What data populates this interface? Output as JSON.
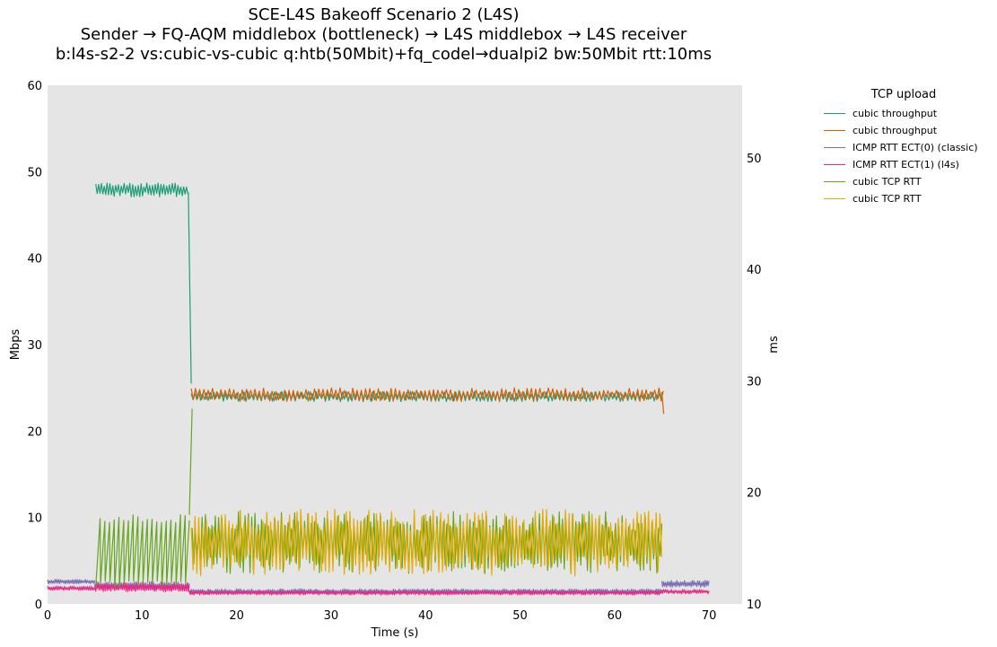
{
  "chart_data": {
    "type": "line",
    "title": [
      "SCE-L4S Bakeoff Scenario 2 (L4S)",
      "Sender → FQ-AQM middlebox (bottleneck) → L4S middlebox → L4S receiver",
      "b:l4s-s2-2 vs:cubic-vs-cubic q:htb(50Mbit)+fq_codel→dualpi2 bw:50Mbit rtt:10ms"
    ],
    "xlabel": "Time (s)",
    "ylabel_left": "Mbps",
    "ylabel_right": "ms",
    "xlim": [
      0,
      73.5
    ],
    "ylim_left": [
      0,
      60
    ],
    "ylim_right": [
      10,
      56.5
    ],
    "xticks": [
      0,
      10,
      20,
      30,
      40,
      50,
      60,
      70
    ],
    "yticks_left": [
      0,
      10,
      20,
      30,
      40,
      50,
      60
    ],
    "yticks_right": [
      10,
      20,
      30,
      40,
      50
    ],
    "grid": false,
    "legend_title": "TCP upload",
    "legend_position": "outside-right",
    "series": [
      {
        "name": "cubic throughput",
        "axis": "left",
        "color": "#1b9e77",
        "segments": [
          {
            "start": 5.1,
            "end": 14.9,
            "base": 47.9,
            "amp": 0.8,
            "period": 0.3
          },
          {
            "start": 14.9,
            "end": 15.2,
            "linear": [
              47.6,
              25.5
            ]
          },
          {
            "start": 15.2,
            "end": 65.0,
            "base": 24.0,
            "amp": 0.6,
            "period": 0.4
          }
        ]
      },
      {
        "name": "cubic throughput",
        "axis": "left",
        "color": "#d95f02",
        "segments": [
          {
            "start": 15.2,
            "end": 65.2,
            "base": 24.2,
            "amp": 0.8,
            "period": 0.45
          },
          {
            "start": 65.0,
            "end": 65.2,
            "linear": [
              24.5,
              22.0
            ]
          }
        ]
      },
      {
        "name": "ICMP RTT ECT(0) (classic)",
        "axis": "right",
        "color": "#7570b3",
        "segments": [
          {
            "start": 0.0,
            "end": 5.0,
            "base": 12.0,
            "amp": 0.2,
            "period": 0.2
          },
          {
            "start": 5.0,
            "end": 15.0,
            "base": 11.6,
            "amp": 0.4,
            "period": 0.2
          },
          {
            "start": 15.0,
            "end": 65.0,
            "base": 11.1,
            "amp": 0.25,
            "period": 0.2
          },
          {
            "start": 65.0,
            "end": 70.0,
            "base": 11.8,
            "amp": 0.3,
            "period": 0.2
          }
        ]
      },
      {
        "name": "ICMP RTT ECT(1) (l4s)",
        "axis": "right",
        "color": "#e7298a",
        "segments": [
          {
            "start": 0.0,
            "end": 5.0,
            "base": 11.4,
            "amp": 0.2,
            "period": 0.2
          },
          {
            "start": 5.0,
            "end": 15.0,
            "base": 11.5,
            "amp": 0.4,
            "period": 0.2
          },
          {
            "start": 15.0,
            "end": 65.0,
            "base": 11.0,
            "amp": 0.2,
            "period": 0.2
          },
          {
            "start": 65.0,
            "end": 70.0,
            "base": 11.1,
            "amp": 0.2,
            "period": 0.2
          }
        ]
      },
      {
        "name": "cubic TCP RTT",
        "axis": "right",
        "color": "#66a61e",
        "segments": [
          {
            "start": 5.1,
            "end": 15.0,
            "sawtooth": [
              11.5,
              18.0
            ],
            "period": 0.5
          },
          {
            "start": 15.0,
            "end": 15.3,
            "linear": [
              18.0,
              27.5
            ]
          },
          {
            "start": 15.3,
            "end": 65.0,
            "base": 15.5,
            "amp": 2.8,
            "period": 0.35
          }
        ]
      },
      {
        "name": "cubic TCP RTT",
        "axis": "right",
        "color": "#e6ab02",
        "segments": [
          {
            "start": 15.2,
            "end": 65.0,
            "base": 15.5,
            "amp": 3.0,
            "period": 0.4
          }
        ]
      }
    ]
  }
}
